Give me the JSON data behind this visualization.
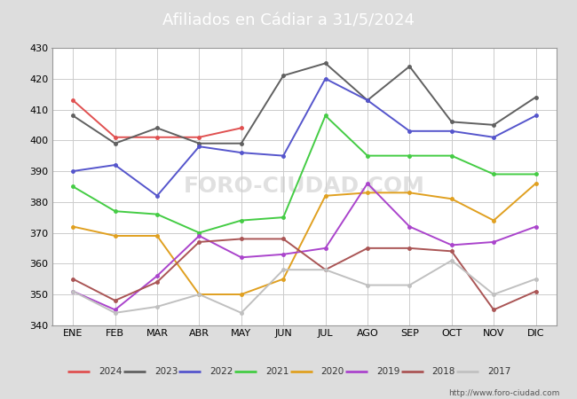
{
  "title": "Afiliados en Cádiar a 31/5/2024",
  "ylim": [
    340,
    430
  ],
  "yticks": [
    340,
    350,
    360,
    370,
    380,
    390,
    400,
    410,
    420,
    430
  ],
  "months": [
    "ENE",
    "FEB",
    "MAR",
    "ABR",
    "MAY",
    "JUN",
    "JUL",
    "AGO",
    "SEP",
    "OCT",
    "NOV",
    "DIC"
  ],
  "series": {
    "2024": {
      "color": "#e05050",
      "data": [
        413,
        401,
        401,
        401,
        404,
        null,
        null,
        null,
        null,
        null,
        null,
        null
      ]
    },
    "2023": {
      "color": "#606060",
      "data": [
        408,
        399,
        404,
        399,
        399,
        421,
        425,
        413,
        424,
        406,
        405,
        414
      ]
    },
    "2022": {
      "color": "#5555cc",
      "data": [
        390,
        392,
        382,
        398,
        396,
        395,
        420,
        413,
        403,
        403,
        401,
        408
      ]
    },
    "2021": {
      "color": "#44cc44",
      "data": [
        385,
        377,
        376,
        370,
        374,
        375,
        408,
        395,
        395,
        395,
        389,
        389
      ]
    },
    "2020": {
      "color": "#e0a020",
      "data": [
        372,
        369,
        369,
        350,
        350,
        355,
        382,
        383,
        383,
        381,
        374,
        386
      ]
    },
    "2019": {
      "color": "#aa44cc",
      "data": [
        351,
        345,
        356,
        369,
        362,
        363,
        365,
        386,
        372,
        366,
        367,
        372
      ]
    },
    "2018": {
      "color": "#aa5555",
      "data": [
        355,
        348,
        354,
        367,
        368,
        368,
        358,
        365,
        365,
        364,
        345,
        351
      ]
    },
    "2017": {
      "color": "#c0c0c0",
      "data": [
        351,
        344,
        346,
        350,
        344,
        358,
        358,
        353,
        353,
        361,
        350,
        355
      ]
    }
  },
  "header_bg": "#4a7fc0",
  "plot_bg": "#ffffff",
  "fig_bg": "#dddddd",
  "grid_color": "#cccccc",
  "footer_url": "http://www.foro-ciudad.com",
  "watermark": "FORO-CIUDAD.COM"
}
